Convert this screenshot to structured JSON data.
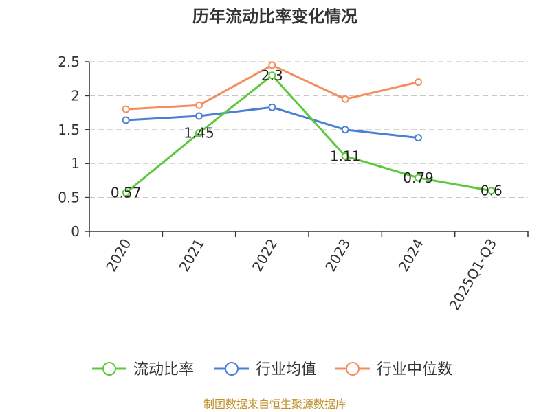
{
  "chart_data": {
    "type": "line",
    "title": "历年流动比率变化情况",
    "categories": [
      "2020",
      "2021",
      "2022",
      "2023",
      "2024",
      "2025Q1-Q3"
    ],
    "yticks": [
      "0",
      "0.5",
      "1",
      "1.5",
      "2",
      "2.5"
    ],
    "ylim": [
      0,
      2.5
    ],
    "grid": true,
    "legend_position": "bottom",
    "series": [
      {
        "name": "流动比率",
        "color": "#5cc93b",
        "values": [
          0.57,
          1.45,
          2.3,
          1.11,
          0.79,
          0.6
        ],
        "labels": [
          "0.57",
          "1.45",
          "2.3",
          "1.11",
          "0.79",
          "0.6"
        ]
      },
      {
        "name": "行业均值",
        "color": "#4a7fd6",
        "values": [
          1.64,
          1.7,
          1.83,
          1.5,
          1.38,
          null
        ]
      },
      {
        "name": "行业中位数",
        "color": "#f68c5c",
        "values": [
          1.8,
          1.86,
          2.45,
          1.95,
          2.2,
          null
        ]
      }
    ],
    "source": "制图数据来自恒生聚源数据库"
  }
}
